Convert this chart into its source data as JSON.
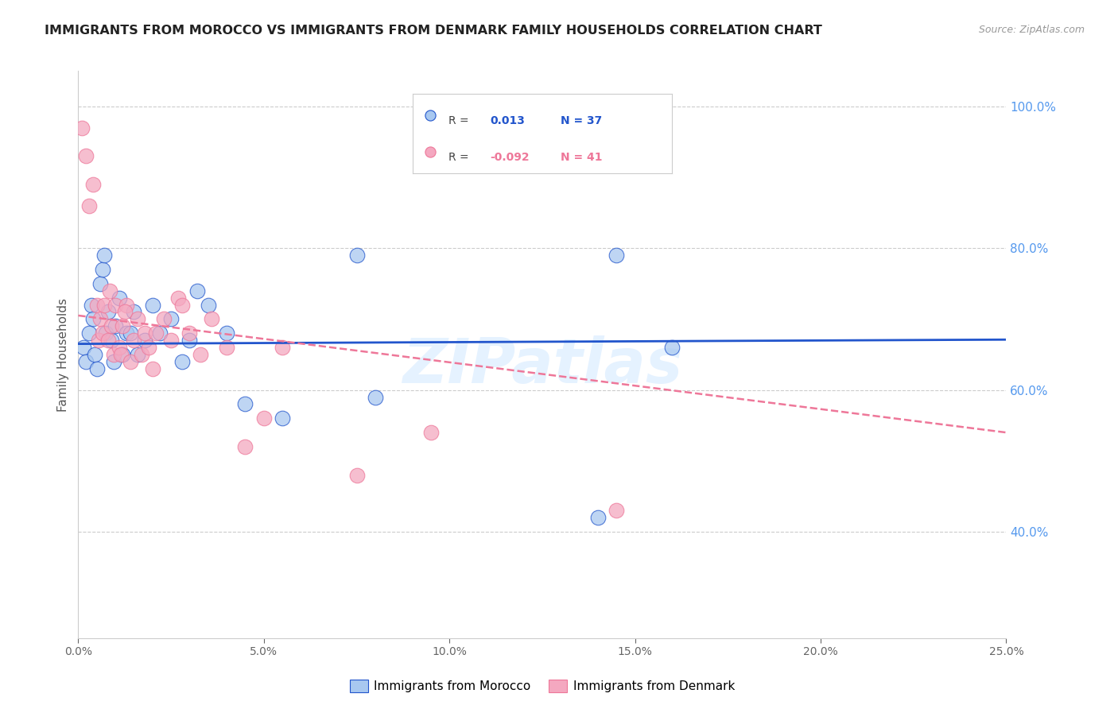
{
  "title": "IMMIGRANTS FROM MOROCCO VS IMMIGRANTS FROM DENMARK FAMILY HOUSEHOLDS CORRELATION CHART",
  "source": "Source: ZipAtlas.com",
  "ylabel": "Family Households",
  "ylabel_right_ticks": [
    40.0,
    60.0,
    80.0,
    100.0
  ],
  "xlim": [
    0.0,
    25.0
  ],
  "ylim": [
    25.0,
    105.0
  ],
  "morocco_R": 0.013,
  "morocco_N": 37,
  "denmark_R": -0.092,
  "denmark_N": 41,
  "morocco_color": "#A8C8F0",
  "denmark_color": "#F4A8C0",
  "morocco_line_color": "#2255CC",
  "denmark_line_color": "#EE7799",
  "watermark": "ZIPatlas",
  "morocco_x": [
    0.15,
    0.2,
    0.3,
    0.35,
    0.4,
    0.45,
    0.5,
    0.6,
    0.65,
    0.7,
    0.75,
    0.8,
    0.9,
    0.95,
    1.0,
    1.1,
    1.2,
    1.3,
    1.5,
    1.6,
    1.8,
    2.0,
    2.2,
    2.5,
    2.8,
    3.0,
    3.2,
    3.5,
    4.0,
    4.5,
    5.5,
    7.5,
    8.0,
    14.0,
    14.5,
    16.0,
    1.4
  ],
  "morocco_y": [
    66,
    64,
    68,
    72,
    70,
    65,
    63,
    75,
    77,
    79,
    68,
    71,
    67,
    64,
    69,
    73,
    65,
    68,
    71,
    65,
    67,
    72,
    68,
    70,
    64,
    67,
    74,
    72,
    68,
    58,
    56,
    79,
    59,
    42,
    79,
    66,
    68
  ],
  "denmark_x": [
    0.1,
    0.2,
    0.3,
    0.4,
    0.5,
    0.55,
    0.6,
    0.65,
    0.7,
    0.8,
    0.85,
    0.9,
    0.95,
    1.0,
    1.1,
    1.15,
    1.2,
    1.3,
    1.4,
    1.5,
    1.6,
    1.7,
    1.8,
    1.9,
    2.0,
    2.1,
    2.3,
    2.5,
    2.7,
    3.0,
    3.3,
    3.6,
    4.0,
    4.5,
    5.0,
    5.5,
    7.5,
    9.5,
    14.5,
    1.25,
    2.8
  ],
  "denmark_y": [
    97,
    93,
    86,
    89,
    72,
    67,
    70,
    68,
    72,
    67,
    74,
    69,
    65,
    72,
    66,
    65,
    69,
    72,
    64,
    67,
    70,
    65,
    68,
    66,
    63,
    68,
    70,
    67,
    73,
    68,
    65,
    70,
    66,
    52,
    56,
    66,
    48,
    54,
    43,
    71,
    72
  ],
  "morocco_trend_x": [
    0.0,
    25.0
  ],
  "morocco_trend_y": [
    66.5,
    67.1
  ],
  "denmark_trend_x": [
    0.0,
    25.0
  ],
  "denmark_trend_y": [
    70.5,
    54.0
  ]
}
